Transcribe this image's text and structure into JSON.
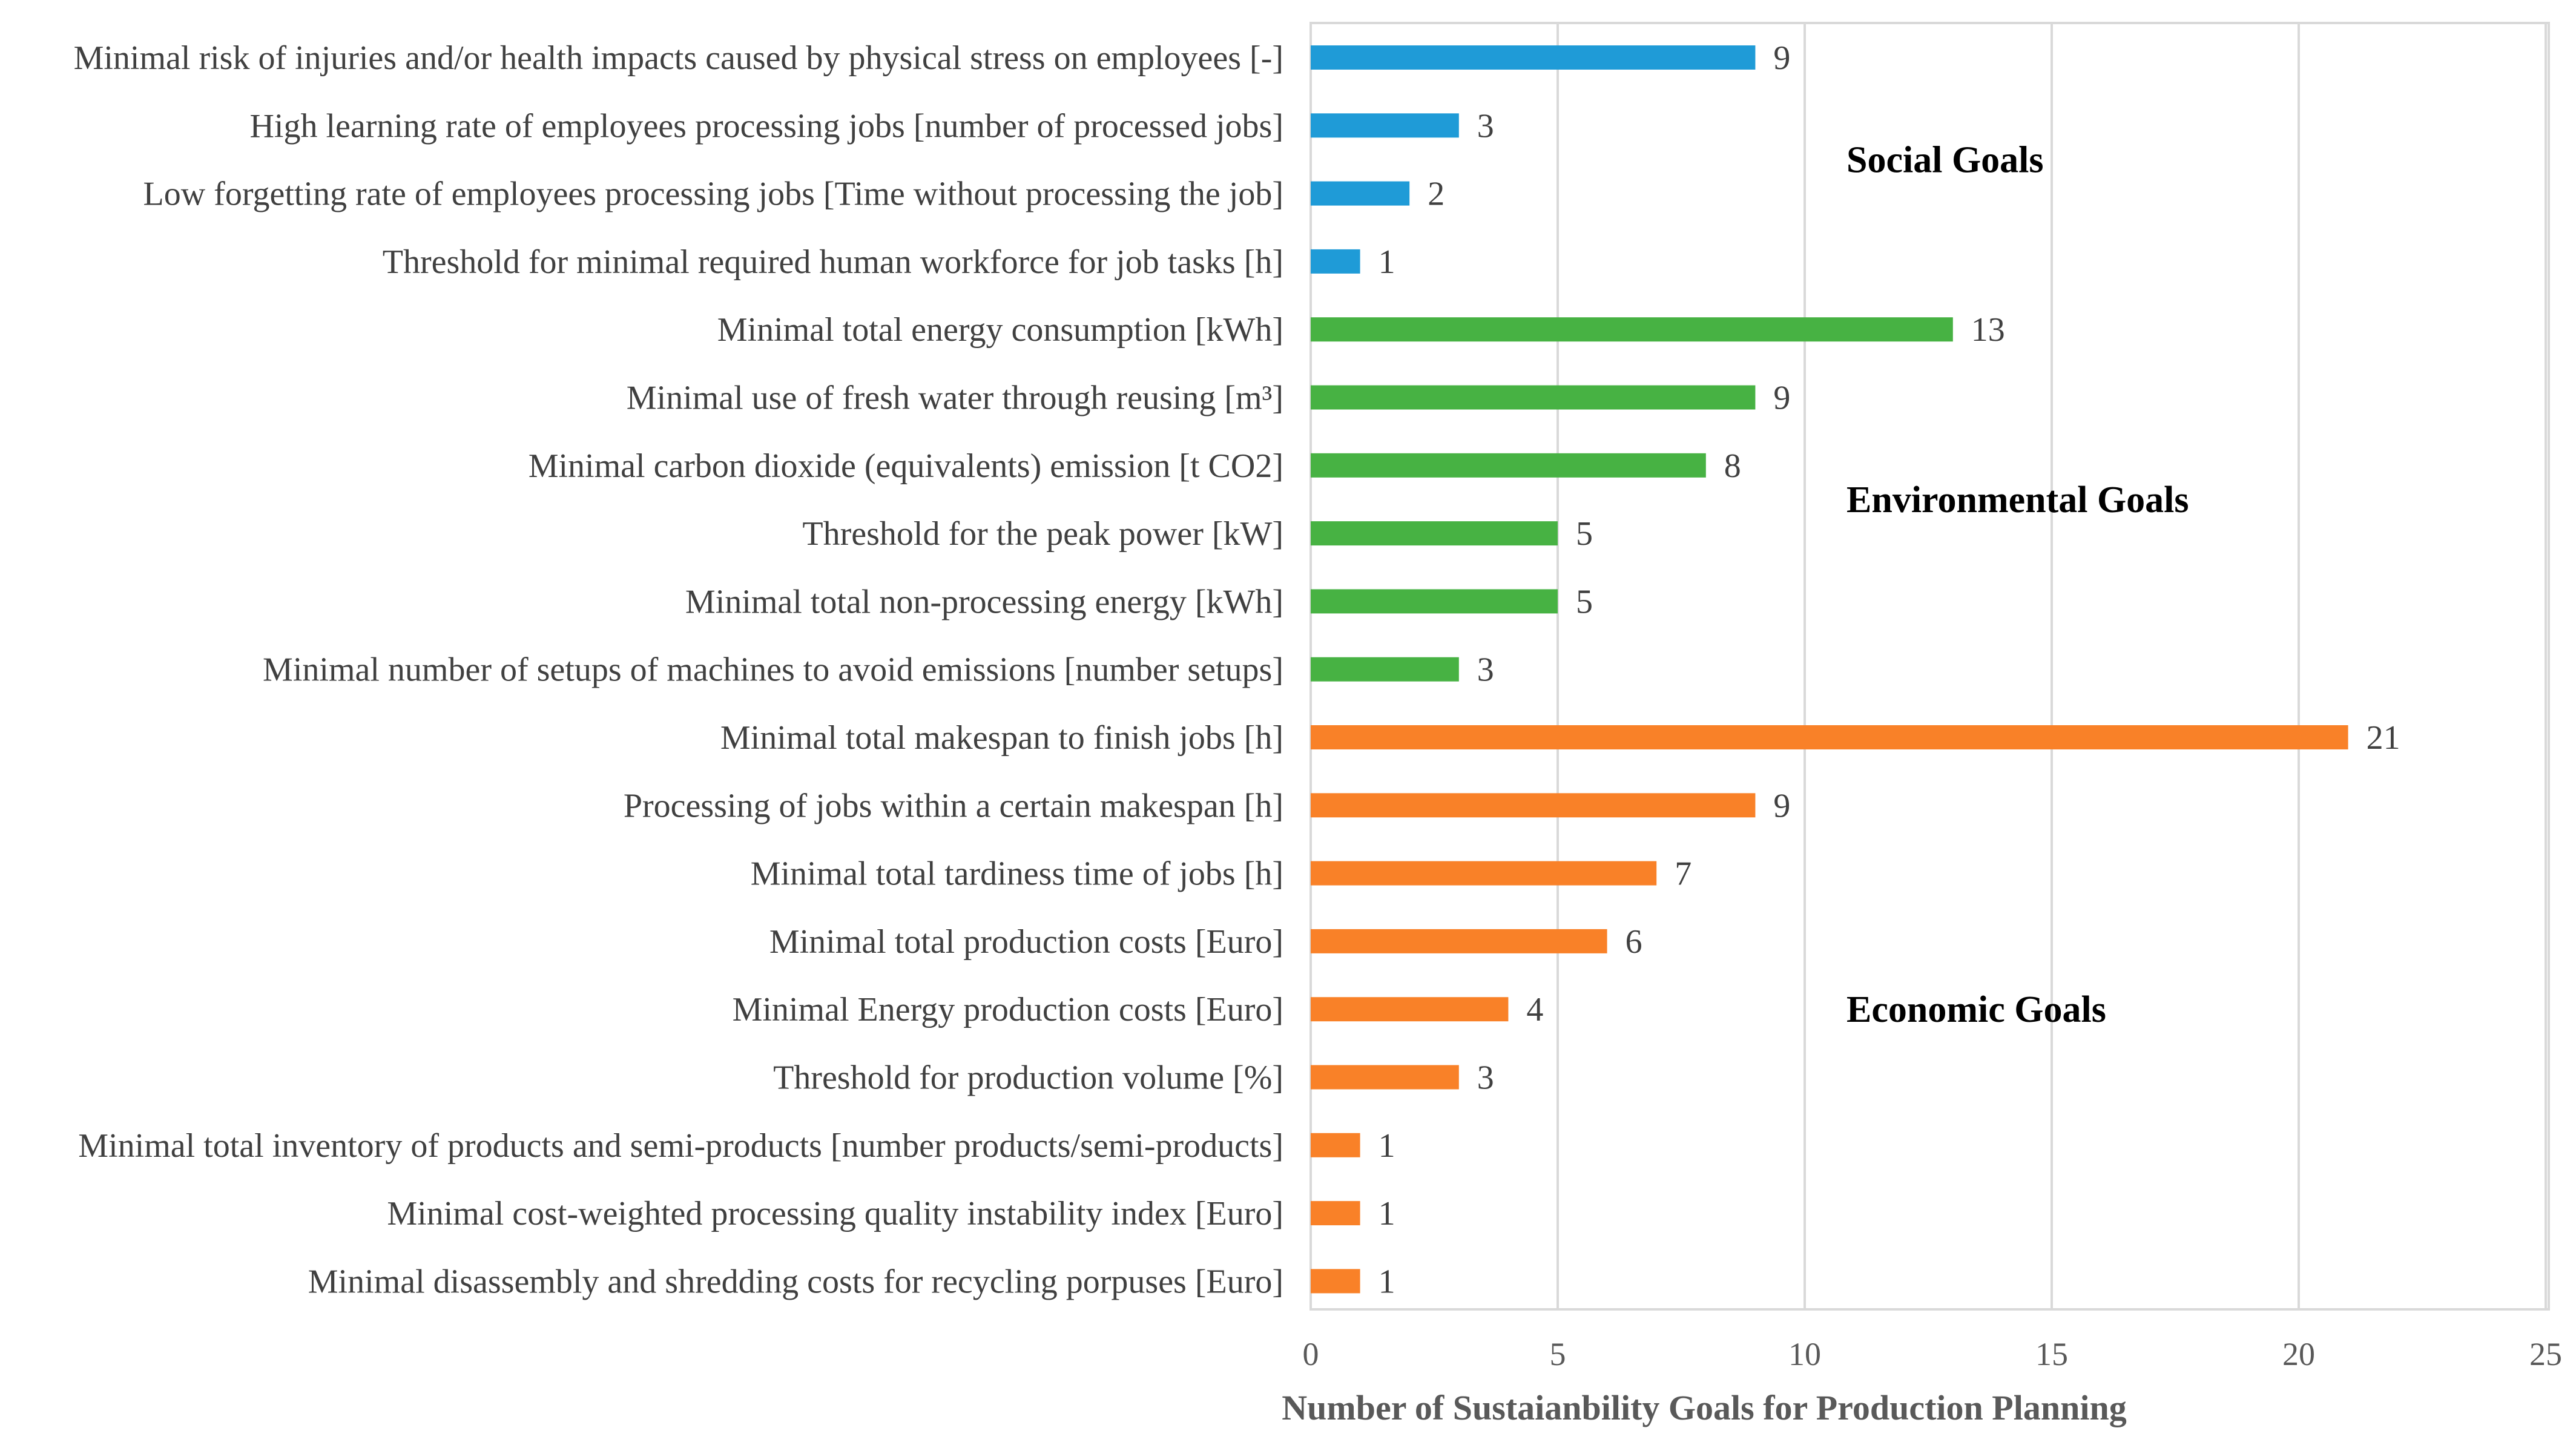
{
  "chart_data": {
    "type": "bar",
    "orientation": "horizontal",
    "title": "",
    "xlabel": "Number of Sustaianbility Goals  for Production Planning",
    "ylabel": "",
    "xlim": [
      0,
      25
    ],
    "xticks": [
      0,
      5,
      10,
      15,
      20,
      25
    ],
    "grid": "vertical",
    "categories": [
      "Minimal  risk of injuries and/or health impacts caused by physical stress on employees [-]",
      "High learning rate of employees processing jobs [number of processed jobs]",
      "Low forgetting rate of employees processing jobs [Time without processing the job]",
      "Threshold for minimal required human workforce for job tasks [h]",
      "Minimal total energy consumption [kWh]",
      "Minimal use of fresh water through reusing [m³]",
      "Minimal carbon dioxide (equivalents) emission [t CO2]",
      "Threshold for the peak power [kW]",
      "Minimal total non-processing energy [kWh]",
      "Minimal number of setups of machines to avoid emissions [number setups]",
      "Minimal total makespan to finish jobs [h]",
      "Processing of jobs within a certain makespan [h]",
      "Minimal total tardiness time of jobs [h]",
      "Minimal total production costs [Euro]",
      "Minimal Energy production costs [Euro]",
      "Threshold for production volume [%]",
      "Minimal total inventory of products and semi-products [number products/semi-products]",
      "Minimal cost-weighted processing quality instability index [Euro]",
      "Minimal disassembly and shredding costs for recycling porpuses [Euro]"
    ],
    "values": [
      9,
      3,
      2,
      1,
      13,
      9,
      8,
      5,
      5,
      3,
      21,
      9,
      7,
      6,
      4,
      3,
      1,
      1,
      1
    ],
    "groups": [
      {
        "name": "Social Goals",
        "color": "#1f9bd7",
        "start": 0,
        "count": 4
      },
      {
        "name": "Environmental Goals",
        "color": "#47b243",
        "start": 4,
        "count": 6
      },
      {
        "name": "Economic Goals",
        "color": "#f98128",
        "start": 10,
        "count": 9
      }
    ]
  }
}
